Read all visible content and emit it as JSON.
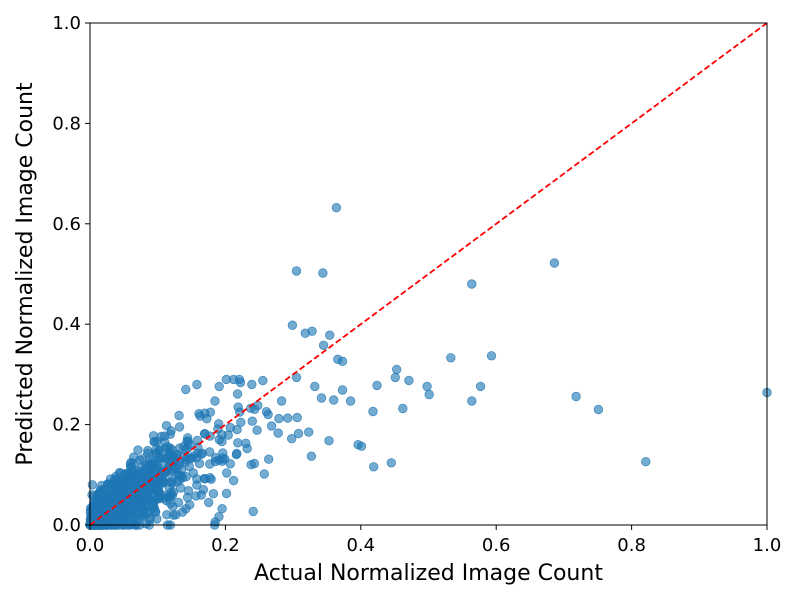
{
  "chart_data": {
    "type": "scatter",
    "title": "",
    "xlabel": "Actual Normalized Image Count",
    "ylabel": "Predicted Normalized Image Count",
    "xlim": [
      0,
      1
    ],
    "ylim": [
      0,
      1
    ],
    "xticks": [
      "0.0",
      "0.2",
      "0.4",
      "0.6",
      "0.8",
      "1.0"
    ],
    "yticks": [
      "0.0",
      "0.2",
      "0.4",
      "0.6",
      "0.8",
      "1.0"
    ],
    "grid": false,
    "legend": "none",
    "point_color": "#1f77b4",
    "reference_line": {
      "style": "dashed",
      "color": "#ff0000",
      "from": [
        0,
        0
      ],
      "to": [
        1,
        1
      ]
    },
    "outliers": [
      [
        0.364,
        0.632
      ],
      [
        0.686,
        0.522
      ],
      [
        0.305,
        0.506
      ],
      [
        0.344,
        0.502
      ],
      [
        0.564,
        0.48
      ],
      [
        0.299,
        0.398
      ],
      [
        0.318,
        0.382
      ],
      [
        0.328,
        0.386
      ],
      [
        0.354,
        0.378
      ],
      [
        0.345,
        0.358
      ],
      [
        0.593,
        0.337
      ],
      [
        0.533,
        0.333
      ],
      [
        0.366,
        0.33
      ],
      [
        0.373,
        0.326
      ],
      [
        0.453,
        0.31
      ],
      [
        0.451,
        0.294
      ],
      [
        0.471,
        0.288
      ],
      [
        0.577,
        0.276
      ],
      [
        0.498,
        0.276
      ],
      [
        0.373,
        0.269
      ],
      [
        0.424,
        0.278
      ],
      [
        0.501,
        0.26
      ],
      [
        1.0,
        0.264
      ],
      [
        0.718,
        0.256
      ],
      [
        0.564,
        0.247
      ],
      [
        0.751,
        0.23
      ],
      [
        0.418,
        0.226
      ],
      [
        0.462,
        0.232
      ],
      [
        0.396,
        0.16
      ],
      [
        0.401,
        0.157
      ],
      [
        0.353,
        0.168
      ],
      [
        0.327,
        0.137
      ],
      [
        0.445,
        0.124
      ],
      [
        0.419,
        0.116
      ],
      [
        0.821,
        0.126
      ],
      [
        0.241,
        0.027
      ],
      [
        0.305,
        0.294
      ],
      [
        0.283,
        0.247
      ],
      [
        0.332,
        0.276
      ],
      [
        0.36,
        0.249
      ],
      [
        0.385,
        0.247
      ],
      [
        0.342,
        0.253
      ],
      [
        0.292,
        0.213
      ],
      [
        0.278,
        0.183
      ],
      [
        0.308,
        0.182
      ],
      [
        0.298,
        0.172
      ],
      [
        0.323,
        0.185
      ],
      [
        0.306,
        0.214
      ],
      [
        0.279,
        0.212
      ],
      [
        0.264,
        0.131
      ]
    ],
    "cluster_seed": 20240611,
    "cluster_count": 780
  }
}
